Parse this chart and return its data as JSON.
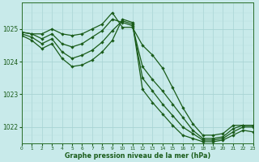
{
  "title": "Graphe pression niveau de la mer (hPa)",
  "bg_color": "#c8eaea",
  "line_color": "#1a5c1a",
  "xlim": [
    0,
    23
  ],
  "ylim": [
    1021.5,
    1025.8
  ],
  "yticks": [
    1022,
    1023,
    1024,
    1025
  ],
  "xticks": [
    0,
    1,
    2,
    3,
    4,
    5,
    6,
    7,
    8,
    9,
    10,
    11,
    12,
    13,
    14,
    15,
    16,
    17,
    18,
    19,
    20,
    21,
    22,
    23
  ],
  "lines": [
    [
      1024.9,
      1024.85,
      1024.85,
      1025.0,
      1024.85,
      1024.8,
      1024.85,
      1025.0,
      1025.15,
      1025.5,
      1025.05,
      1025.05,
      1024.5,
      1024.2,
      1023.8,
      1023.2,
      1022.6,
      1022.1,
      1021.75,
      1021.75,
      1021.8,
      1022.05,
      1022.05,
      1022.05
    ],
    [
      1024.9,
      1024.85,
      1024.7,
      1024.85,
      1024.55,
      1024.45,
      1024.55,
      1024.75,
      1024.95,
      1025.3,
      1025.2,
      1025.1,
      1023.85,
      1023.45,
      1023.1,
      1022.7,
      1022.3,
      1021.9,
      1021.65,
      1021.65,
      1021.7,
      1021.95,
      1022.05,
      1022.05
    ],
    [
      1024.85,
      1024.75,
      1024.55,
      1024.7,
      1024.3,
      1024.1,
      1024.2,
      1024.35,
      1024.6,
      1024.95,
      1025.25,
      1025.15,
      1023.5,
      1023.1,
      1022.7,
      1022.35,
      1022.0,
      1021.8,
      1021.6,
      1021.6,
      1021.65,
      1021.85,
      1022.0,
      1022.0
    ],
    [
      1024.8,
      1024.65,
      1024.4,
      1024.55,
      1024.1,
      1023.85,
      1023.9,
      1024.05,
      1024.3,
      1024.65,
      1025.3,
      1025.2,
      1023.15,
      1022.75,
      1022.4,
      1022.05,
      1021.75,
      1021.65,
      1021.55,
      1021.55,
      1021.6,
      1021.75,
      1021.9,
      1021.85
    ]
  ]
}
